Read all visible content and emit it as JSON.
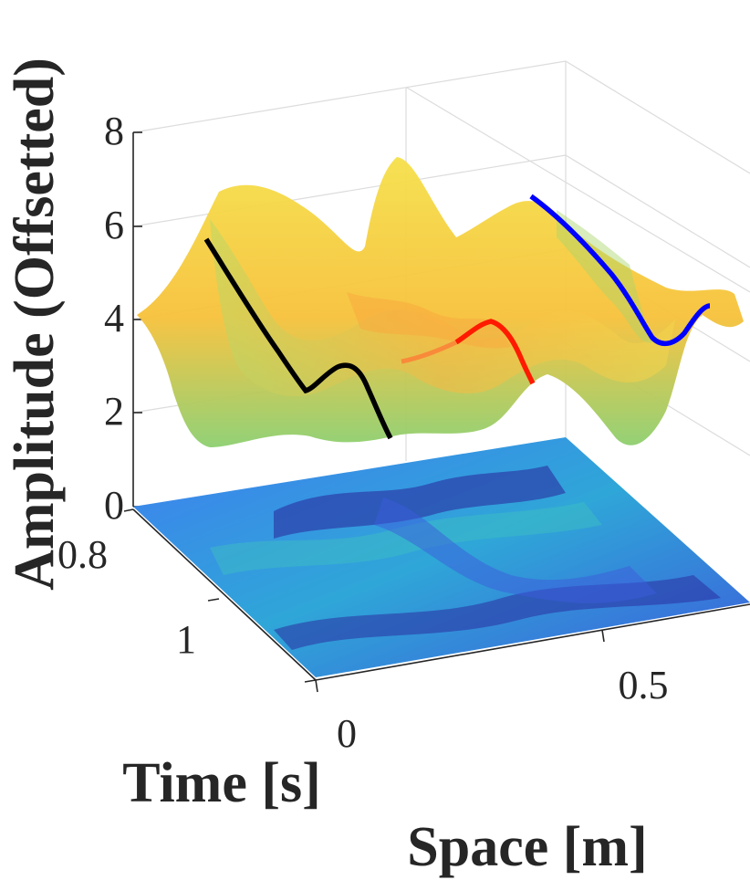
{
  "chart_data": {
    "type": "surface",
    "xlabel": "Space [m]",
    "ylabel": "Time [s]",
    "zlabel": "Amplitude (Offsetted)",
    "xticks": [
      "0",
      "0.5"
    ],
    "yticks": [
      "0.8",
      "1"
    ],
    "zticks": [
      "0",
      "2",
      "4",
      "6",
      "8"
    ],
    "zlim": [
      0,
      8
    ],
    "colormap": "parula",
    "surface_colors": [
      "#5bc98a",
      "#a8d46a",
      "#f5d84a",
      "#f7c13a",
      "#f9a73e"
    ],
    "floor_colors": [
      "#2a2fa0",
      "#3c5bdb",
      "#3f7ef0",
      "#2fa6d8",
      "#3fc2c0"
    ],
    "highlighted_lines": [
      {
        "color": "#000000",
        "z": [
          5.6,
          4.5,
          3.4,
          2.4,
          2.9,
          2.0,
          1.0
        ]
      },
      {
        "color": "#ff0000",
        "z": [
          2.0,
          3.0,
          3.5,
          3.2,
          2.5
        ]
      },
      {
        "color": "#0000ff",
        "z": [
          5.7,
          5.0,
          4.3,
          3.6,
          3.3,
          3.8,
          4.1
        ]
      }
    ]
  }
}
